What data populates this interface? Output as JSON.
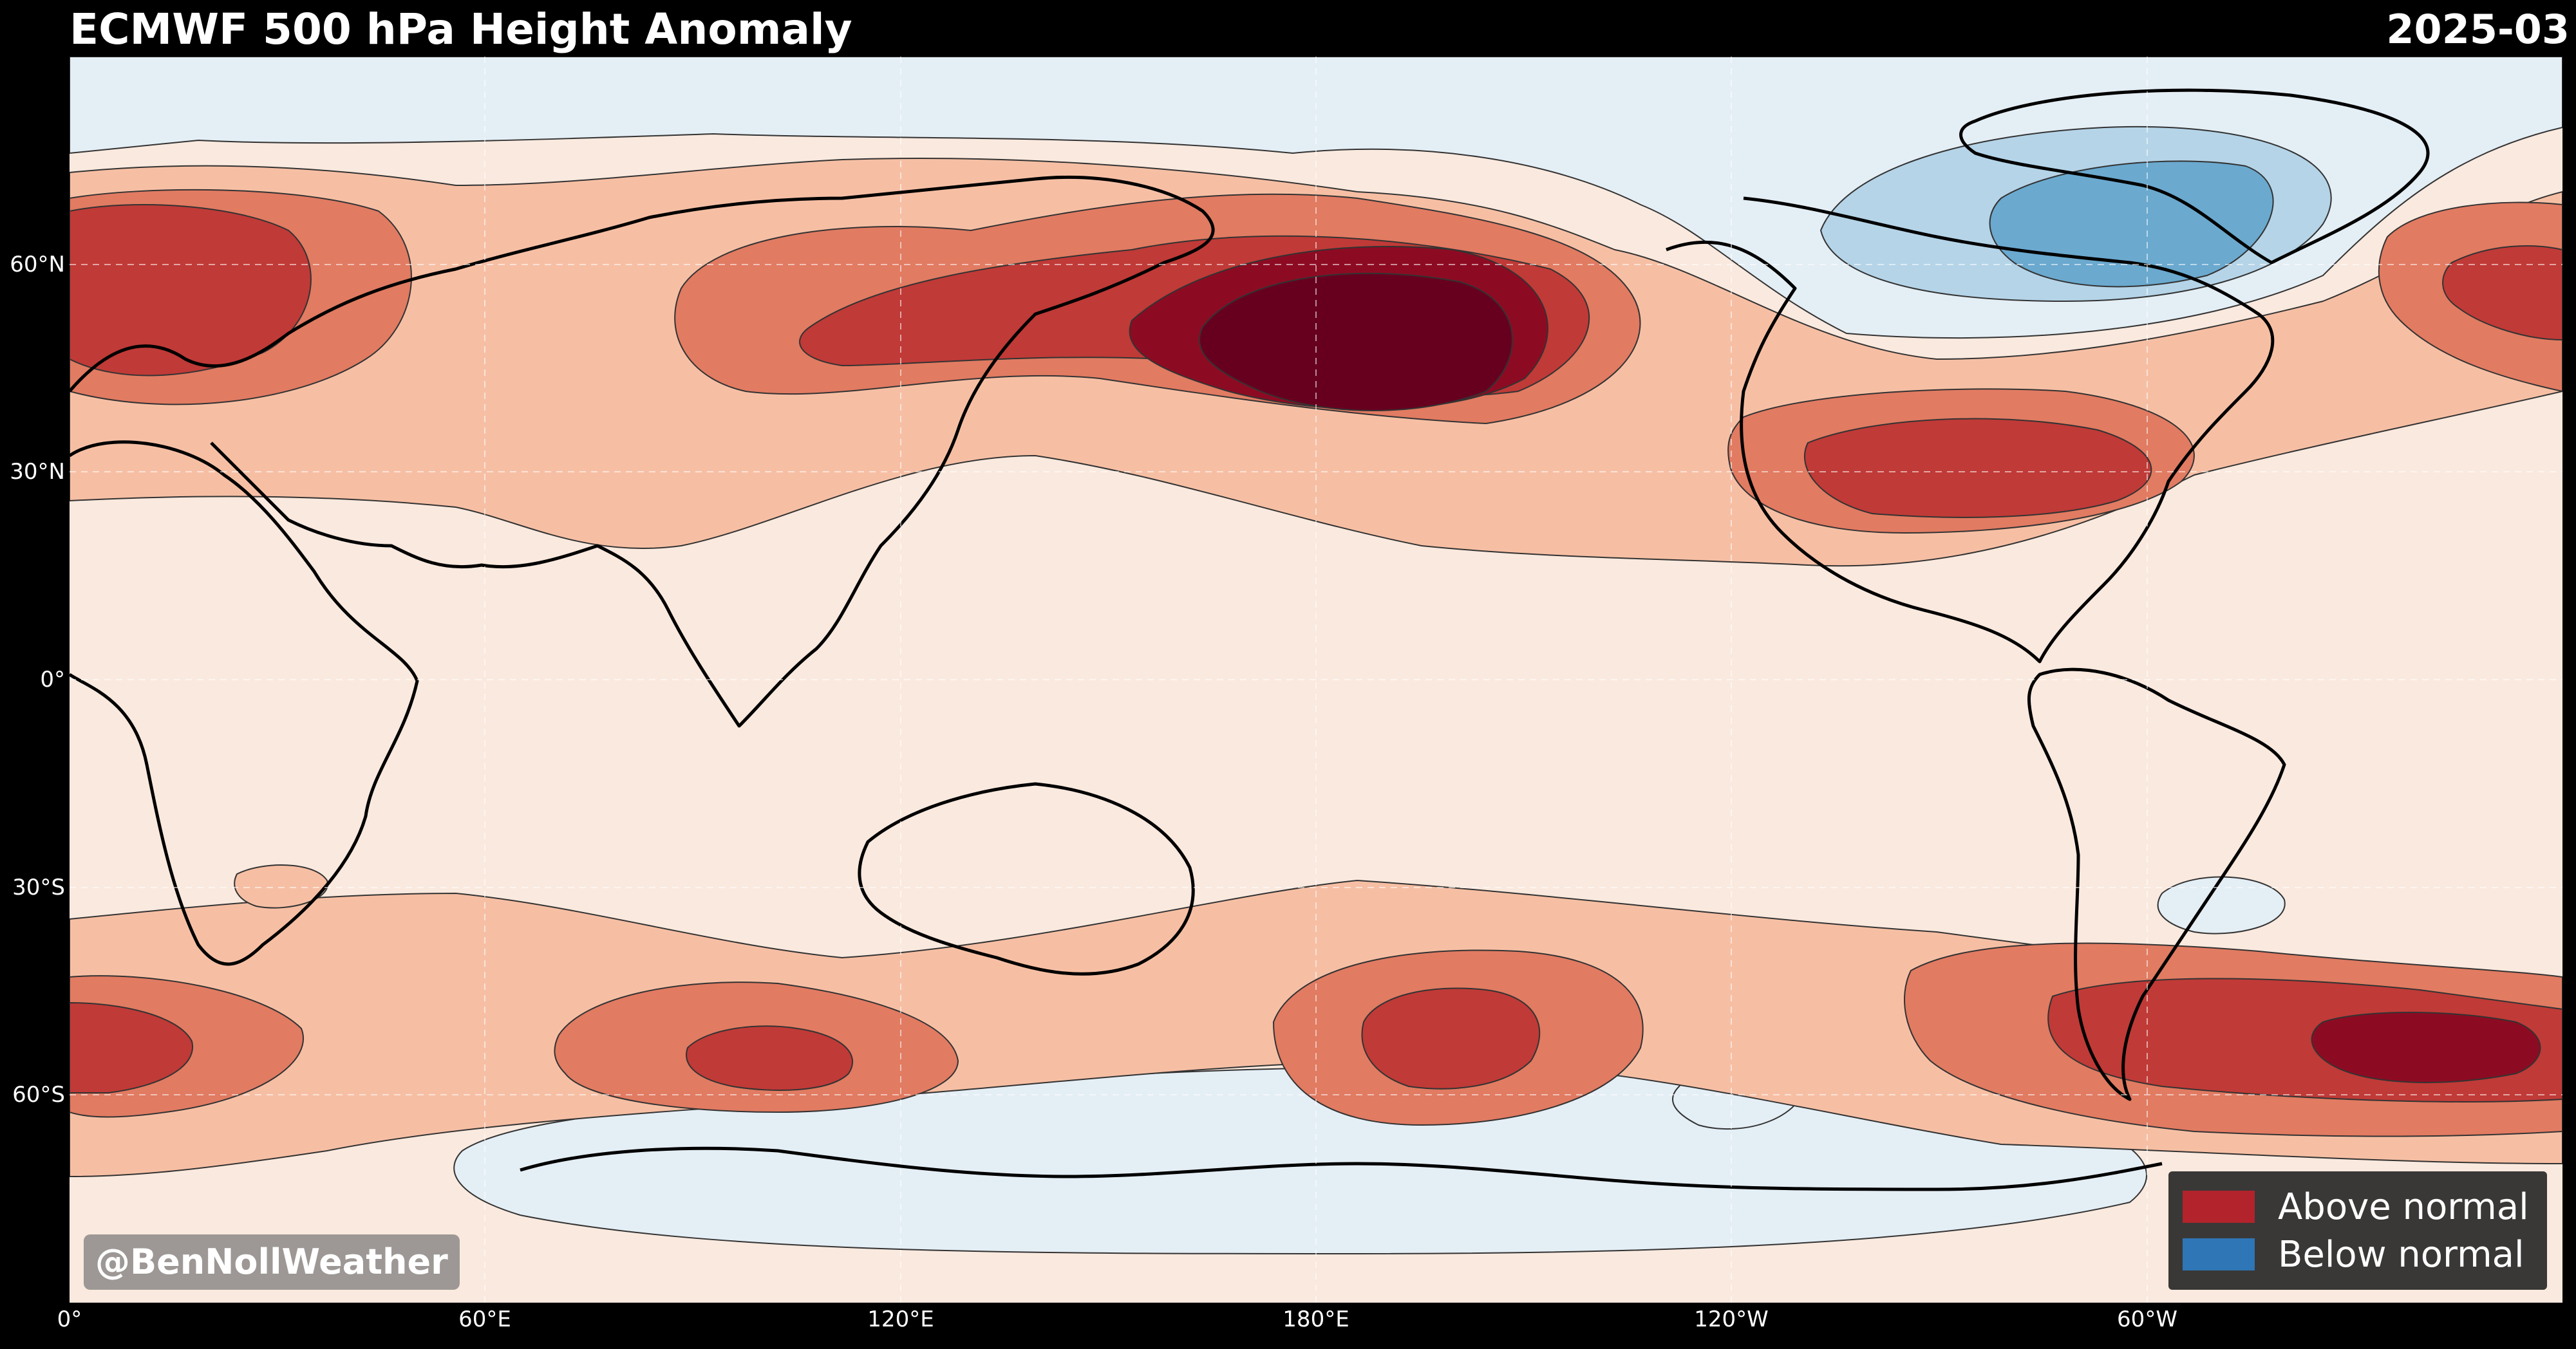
{
  "header": {
    "title": "ECMWF 500 hPa Height Anomaly",
    "date": "2025-03"
  },
  "axes": {
    "lat_labels": [
      "60°N",
      "30°N",
      "0°",
      "30°S",
      "60°S"
    ],
    "lon_labels": [
      "0°",
      "60°E",
      "120°E",
      "180°E",
      "120°W",
      "60°W"
    ]
  },
  "watermark": "@BenNollWeather",
  "legend": [
    {
      "label": "Above normal",
      "color": "#b2232b"
    },
    {
      "label": "Below normal",
      "color": "#2e76b5"
    }
  ],
  "colors": {
    "background": "#fae9de",
    "above_levels": [
      "#f6bfa4",
      "#e17b62",
      "#c03a37",
      "#8d0b22",
      "#67001f"
    ],
    "below_levels": [
      "#e4eef5",
      "#b5d4e8",
      "#6ba9cf"
    ],
    "frame": "#000000"
  }
}
